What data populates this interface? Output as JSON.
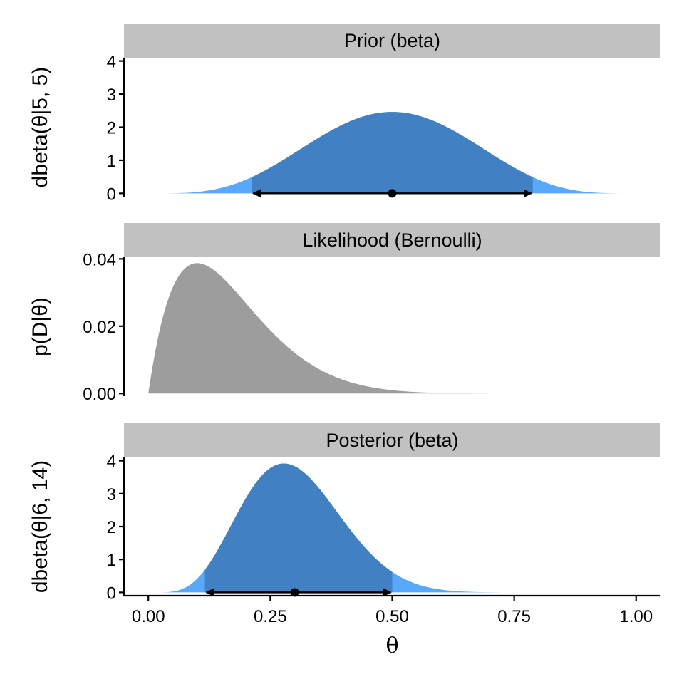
{
  "chart_data": {
    "type": "area",
    "x_axis": {
      "label": "θ",
      "ticks": [
        0,
        0.25,
        0.5,
        0.75,
        1
      ],
      "tick_labels": [
        "0.00",
        "0.25",
        "0.50",
        "0.75",
        "1.00"
      ],
      "range": [
        -0.05,
        1.05
      ]
    },
    "panels": [
      {
        "title": "Prior (beta)",
        "ylabel": "dbeta(θ|5, 5)",
        "distribution": "beta",
        "params": {
          "a": 5,
          "b": 5
        },
        "x_range": [
          0.04,
          0.96
        ],
        "ylim": [
          -0.1,
          4.1
        ],
        "yticks": [
          0,
          1,
          2,
          3,
          4
        ],
        "ytick_labels": [
          "0",
          "1",
          "2",
          "3",
          "4"
        ],
        "interval": [
          0.212,
          0.788
        ],
        "point": 0.5,
        "fill_color": "#58a8fb",
        "interval_color": "#4180c3"
      },
      {
        "title": "Likelihood (Bernoulli)",
        "ylabel": "p(D|θ)",
        "distribution": "bernoulli_likelihood",
        "params": {
          "successes": 1,
          "failures": 9
        },
        "x_range": [
          0.0,
          0.7
        ],
        "ylim": [
          -0.0008,
          0.0405
        ],
        "yticks": [
          0,
          0.02,
          0.04
        ],
        "ytick_labels": [
          "0.00",
          "0.02",
          "0.04"
        ],
        "fill_color": "#9d9d9d"
      },
      {
        "title": "Posterior (beta)",
        "ylabel": "dbeta(θ|6, 14)",
        "distribution": "beta",
        "params": {
          "a": 6,
          "b": 14
        },
        "x_range": [
          0.03,
          0.72
        ],
        "ylim": [
          -0.1,
          4.1
        ],
        "yticks": [
          0,
          1,
          2,
          3,
          4
        ],
        "ytick_labels": [
          "0",
          "1",
          "2",
          "3",
          "4"
        ],
        "interval": [
          0.116,
          0.5
        ],
        "point": 0.3,
        "fill_color": "#58a8fb",
        "interval_color": "#4180c3"
      }
    ]
  }
}
